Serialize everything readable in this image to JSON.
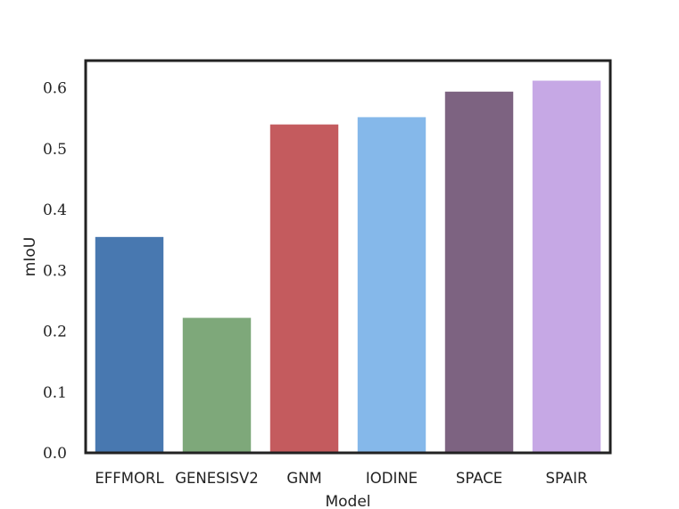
{
  "chart_data": {
    "type": "bar",
    "title": "",
    "xlabel": "Model",
    "ylabel": "mIoU",
    "categories": [
      "EFFMORL",
      "GENESISV2",
      "GNM",
      "IODINE",
      "SPACE",
      "SPAIR"
    ],
    "values": [
      0.355,
      0.222,
      0.54,
      0.552,
      0.594,
      0.612
    ],
    "colors": [
      "#4878b0",
      "#7ea87a",
      "#c45b5e",
      "#85b8ea",
      "#7d6381",
      "#c6a8e5"
    ],
    "ylim": [
      0,
      0.645
    ],
    "yticks": [
      0.0,
      0.1,
      0.2,
      0.3,
      0.4,
      0.5,
      0.6
    ],
    "ytick_labels": [
      "0.0",
      "0.1",
      "0.2",
      "0.3",
      "0.4",
      "0.5",
      "0.6"
    ],
    "grid": false,
    "legend": "none"
  }
}
